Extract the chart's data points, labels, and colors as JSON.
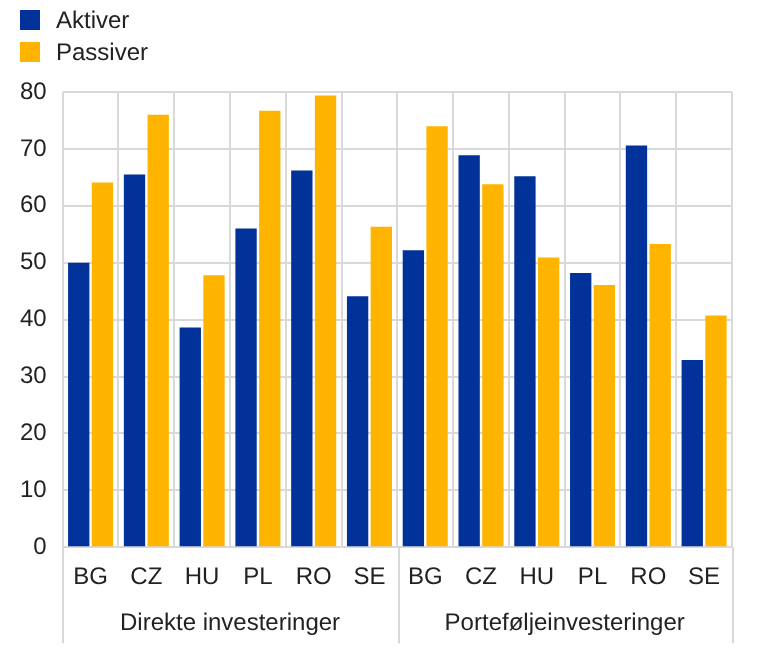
{
  "chart_data": {
    "type": "bar",
    "categories": [
      "BG",
      "CZ",
      "HU",
      "PL",
      "RO",
      "SE",
      "BG",
      "CZ",
      "HU",
      "PL",
      "RO",
      "SE"
    ],
    "series": [
      {
        "name": "Aktiver",
        "color": "#003299",
        "values": [
          50,
          65.5,
          38.6,
          56,
          66.2,
          44.1,
          52.2,
          68.9,
          65.2,
          48.2,
          70.6,
          32.9
        ]
      },
      {
        "name": "Passiver",
        "color": "#ffb400",
        "values": [
          64.1,
          76,
          47.8,
          76.7,
          79.4,
          56.3,
          74,
          63.8,
          50.9,
          46.1,
          53.3,
          40.7
        ]
      }
    ],
    "ylim": [
      0,
      80
    ],
    "yticks": [
      0,
      10,
      20,
      30,
      40,
      50,
      60,
      70,
      80
    ],
    "grid": true,
    "legend": "top left",
    "annotations": [
      "Direkte investeringer",
      "Porteføljeinvesteringer"
    ]
  }
}
